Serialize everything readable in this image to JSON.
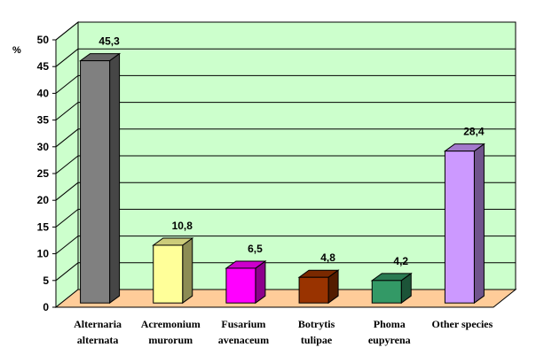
{
  "chart_data": {
    "type": "bar",
    "ylabel": "%",
    "ylim": [
      0,
      50
    ],
    "yticks": [
      0,
      5,
      10,
      15,
      20,
      25,
      30,
      35,
      40,
      45,
      50
    ],
    "grid": true,
    "categories": [
      [
        "Alternaria",
        "alternata"
      ],
      [
        "Acremonium",
        "murorum"
      ],
      [
        "Fusarium",
        "avenaceum"
      ],
      [
        "Botrytis",
        "tulipae"
      ],
      [
        "Phoma",
        "eupyrena"
      ],
      [
        "Other species"
      ]
    ],
    "values": [
      45.3,
      10.8,
      6.5,
      4.8,
      4.2,
      28.4
    ],
    "value_labels": [
      "45,3",
      "10,8",
      "6,5",
      "4,8",
      "4,2",
      "28,4"
    ],
    "colors": {
      "wall": "#ccffcc",
      "floor": "#ffcc99",
      "bars": [
        "#808080",
        "#ffff99",
        "#ff00ff",
        "#993300",
        "#339966",
        "#cc99ff"
      ]
    }
  }
}
